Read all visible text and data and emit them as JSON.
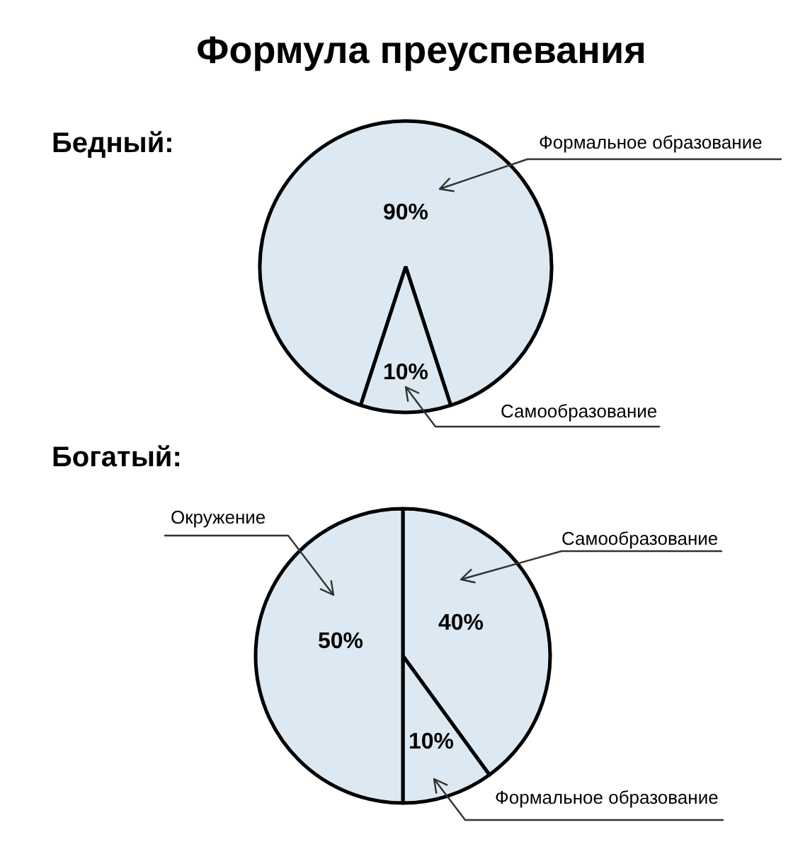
{
  "chart_data": [
    {
      "type": "pie",
      "title": "Формула преуспевания",
      "subtitle": "Бедный:",
      "categories": [
        "Формальное образование",
        "Самообразование"
      ],
      "values": [
        90,
        10
      ],
      "colors": [
        "#dce9f2",
        "#dce9f2"
      ],
      "value_labels": [
        "90%",
        "10%"
      ]
    },
    {
      "type": "pie",
      "title": "Богатый:",
      "categories": [
        "Самообразование",
        "Формальное образование",
        "Окружение"
      ],
      "values": [
        40,
        10,
        50
      ],
      "colors": [
        "#dce9f2",
        "#dce9f2",
        "#dce9f2"
      ],
      "value_labels": [
        "40%",
        "10%",
        "50%"
      ]
    }
  ]
}
